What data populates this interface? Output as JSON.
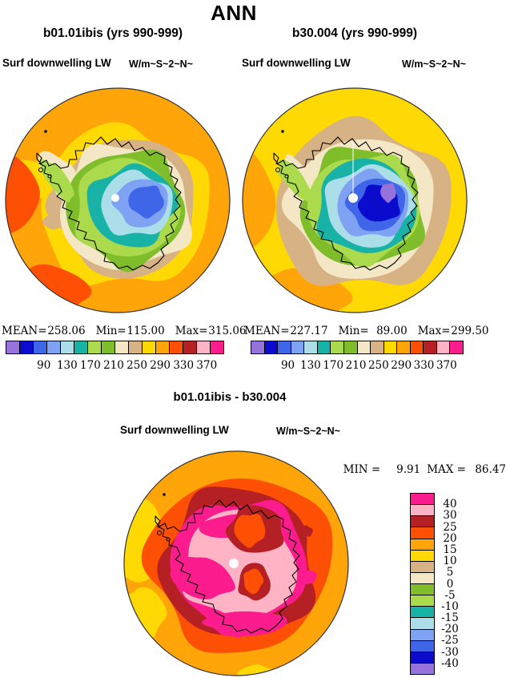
{
  "title": "ANN",
  "panels": {
    "left": {
      "title": "b01.01ibis (yrs 990-999)",
      "field_label": "Surf downwelling LW",
      "units_label": "W/m~S~2~N~",
      "stats": [
        {
          "label": "MEAN=",
          "value": "258.06"
        },
        {
          "label": "Min=",
          "value": "115.00"
        },
        {
          "label": "Max=",
          "value": "315.06"
        }
      ],
      "colorbar_ticks": [
        "90",
        "130",
        "170",
        "210",
        "250",
        "290",
        "330",
        "370"
      ]
    },
    "right": {
      "title": "b30.004 (yrs 990-999)",
      "field_label": "Surf downwelling LW",
      "units_label": "W/m~S~2~N~",
      "stats": [
        {
          "label": "MEAN=",
          "value": "227.17"
        },
        {
          "label": "Min=",
          "value": "89.00"
        },
        {
          "label": "Max=",
          "value": "299.50"
        }
      ],
      "colorbar_ticks": [
        "90",
        "130",
        "170",
        "210",
        "250",
        "290",
        "330",
        "370"
      ]
    },
    "diff": {
      "title": "b01.01ibis - b30.004",
      "field_label": "Surf downwelling LW",
      "units_label": "W/m~S~2~N~",
      "stats": [
        {
          "label": "MIN =",
          "value": "9.91"
        },
        {
          "label": "MAX =",
          "value": "86.47"
        }
      ],
      "legend_ticks": [
        "40",
        "30",
        "25",
        "20",
        "15",
        "10",
        "5",
        "0",
        "-5",
        "-10",
        "-15",
        "-20",
        "-25",
        "-30",
        "-40"
      ]
    }
  },
  "palette": [
    "#9673DB",
    "#0B0BCE",
    "#3F66E8",
    "#7FA3F2",
    "#ACDEE9",
    "#18B2A6",
    "#ABDB4D",
    "#80BD2B",
    "#F3E7C6",
    "#D6B285",
    "#FFD904",
    "#FFA50A",
    "#FD5005",
    "#B52025",
    "#FFB3C5",
    "#FC1C8D"
  ],
  "ink_color": "#000000",
  "chart_data": {
    "type": "heatmap",
    "subtype": "filled-contour south polar stereographic maps",
    "overall_title": "ANN",
    "field": "Surf downwelling LW",
    "units": "W/m~S~2~N~",
    "palette_cold_to_warm": [
      "#9673DB",
      "#0B0BCE",
      "#3F66E8",
      "#7FA3F2",
      "#ACDEE9",
      "#18B2A6",
      "#ABDB4D",
      "#80BD2B",
      "#F3E7C6",
      "#D6B285",
      "#FFD904",
      "#FFA50A",
      "#FD5005",
      "#B52025",
      "#FFB3C5",
      "#FC1C8D"
    ],
    "panels": [
      {
        "name": "b01.01ibis (yrs 990-999)",
        "mean": 258.06,
        "min": 115.0,
        "max": 315.06,
        "contour_levels": [
          90,
          110,
          130,
          150,
          170,
          190,
          210,
          230,
          250,
          270,
          290,
          310,
          330,
          350,
          370
        ],
        "labeled_ticks": [
          90,
          130,
          170,
          210,
          250,
          290,
          330,
          370
        ],
        "legend_position": "bottom-horizontal"
      },
      {
        "name": "b30.004 (yrs 990-999)",
        "mean": 227.17,
        "min": 89.0,
        "max": 299.5,
        "contour_levels": [
          90,
          110,
          130,
          150,
          170,
          190,
          210,
          230,
          250,
          270,
          290,
          310,
          330,
          350,
          370
        ],
        "labeled_ticks": [
          90,
          130,
          170,
          210,
          250,
          290,
          330,
          370
        ],
        "legend_position": "bottom-horizontal"
      },
      {
        "name": "b01.01ibis - b30.004",
        "min": 9.91,
        "max": 86.47,
        "contour_levels": [
          -40,
          -30,
          -25,
          -20,
          -15,
          -10,
          -5,
          0,
          5,
          10,
          15,
          20,
          25,
          30,
          40
        ],
        "legend_position": "right-vertical"
      }
    ]
  }
}
